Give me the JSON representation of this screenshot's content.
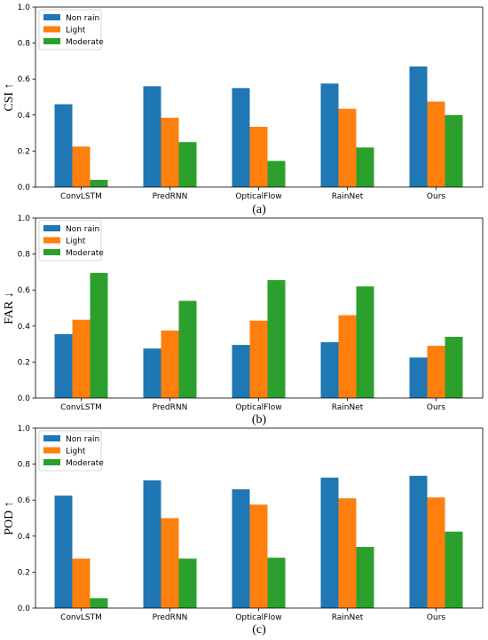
{
  "chart_data": [
    {
      "type": "bar",
      "panel_label": "(a)",
      "ylabel": "CSI ↑",
      "ylim": [
        0,
        1.0
      ],
      "yticks": [
        "0.0",
        "0.2",
        "0.4",
        "0.6",
        "0.8",
        "1.0"
      ],
      "categories": [
        "ConvLSTM",
        "PredRNN",
        "OpticalFlow",
        "RainNet",
        "Ours"
      ],
      "legend_position": "upper-left",
      "series": [
        {
          "name": "Non rain",
          "color": "#1f77b4",
          "values": [
            0.46,
            0.56,
            0.55,
            0.575,
            0.67
          ]
        },
        {
          "name": "Light",
          "color": "#ff7f0e",
          "values": [
            0.225,
            0.385,
            0.335,
            0.435,
            0.475
          ]
        },
        {
          "name": "Moderate",
          "color": "#2ca02c",
          "values": [
            0.04,
            0.25,
            0.145,
            0.22,
            0.4
          ]
        }
      ]
    },
    {
      "type": "bar",
      "panel_label": "(b)",
      "ylabel": "FAR ↓",
      "ylim": [
        0,
        1.0
      ],
      "yticks": [
        "0.0",
        "0.2",
        "0.4",
        "0.6",
        "0.8",
        "1.0"
      ],
      "categories": [
        "ConvLSTM",
        "PredRNN",
        "OpticalFlow",
        "RainNet",
        "Ours"
      ],
      "legend_position": "upper-left",
      "series": [
        {
          "name": "Non rain",
          "color": "#1f77b4",
          "values": [
            0.355,
            0.275,
            0.295,
            0.31,
            0.225
          ]
        },
        {
          "name": "Light",
          "color": "#ff7f0e",
          "values": [
            0.435,
            0.375,
            0.43,
            0.46,
            0.29
          ]
        },
        {
          "name": "Moderate",
          "color": "#2ca02c",
          "values": [
            0.695,
            0.54,
            0.655,
            0.62,
            0.34
          ]
        }
      ]
    },
    {
      "type": "bar",
      "panel_label": "(c)",
      "ylabel": "POD ↑",
      "ylim": [
        0,
        1.0
      ],
      "yticks": [
        "0.0",
        "0.2",
        "0.4",
        "0.6",
        "0.8",
        "1.0"
      ],
      "categories": [
        "ConvLSTM",
        "PredRNN",
        "OpticalFlow",
        "RainNet",
        "Ours"
      ],
      "legend_position": "upper-left",
      "series": [
        {
          "name": "Non rain",
          "color": "#1f77b4",
          "values": [
            0.625,
            0.71,
            0.66,
            0.725,
            0.735
          ]
        },
        {
          "name": "Light",
          "color": "#ff7f0e",
          "values": [
            0.275,
            0.5,
            0.575,
            0.61,
            0.615
          ]
        },
        {
          "name": "Moderate",
          "color": "#2ca02c",
          "values": [
            0.055,
            0.275,
            0.28,
            0.34,
            0.425
          ]
        }
      ]
    }
  ]
}
